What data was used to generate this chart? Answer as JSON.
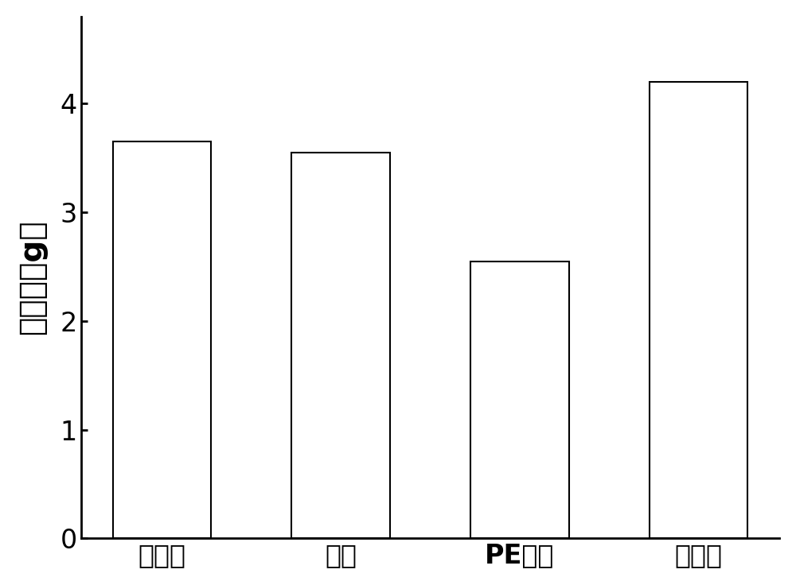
{
  "categories": [
    "活性炭",
    "硅胶",
    "PE隔膜",
    "无纺布"
  ],
  "values": [
    3.65,
    3.55,
    2.55,
    4.2
  ],
  "bar_color": "#ffffff",
  "bar_edgecolor": "#000000",
  "ylabel": "吸附量（g）",
  "ylim": [
    0,
    4.8
  ],
  "yticks": [
    0,
    1,
    2,
    3,
    4
  ],
  "background_color": "#ffffff",
  "bar_linewidth": 1.5,
  "ylabel_fontsize": 28,
  "tick_fontsize": 24,
  "xlabel_bold": [
    "PE隔膜"
  ],
  "bar_width": 0.55,
  "spine_linewidth": 2.0
}
